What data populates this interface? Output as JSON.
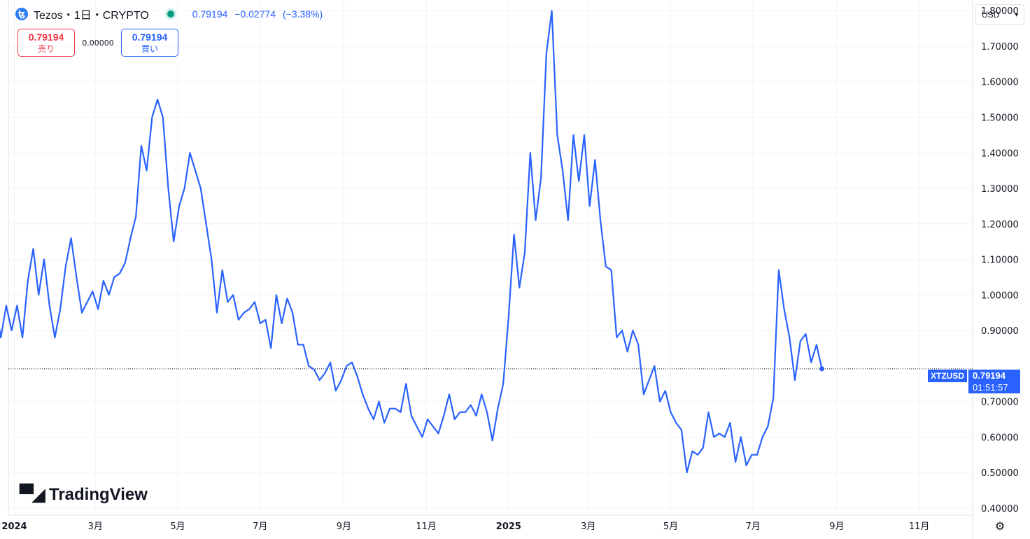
{
  "header": {
    "symbol_icon": "tezos-icon",
    "symbol_glyph": "ꜩ",
    "title": "Tezos・1日・CRYPTO",
    "price": "0.79194",
    "change": "−0.02774",
    "change_pct": "(−3.38%)"
  },
  "trade": {
    "sell_price": "0.79194",
    "sell_label": "売り",
    "spread": "0.00000",
    "buy_price": "0.79194",
    "buy_label": "買い"
  },
  "currency": {
    "value": "USD"
  },
  "price_label": {
    "symbol": "XTZUSD",
    "value": "0.79194",
    "countdown": "01:51:57"
  },
  "logo": {
    "text": "TradingView"
  },
  "colors": {
    "line": "#2962ff",
    "sell": "#f23645",
    "buy": "#2962ff",
    "live": "#089981"
  },
  "chart_data": {
    "type": "line",
    "series": [
      {
        "values": [
          0.97,
          0.88,
          0.97,
          0.9,
          0.97,
          0.88,
          1.04,
          1.13,
          1.0,
          1.1,
          0.97,
          0.88,
          0.96,
          1.08,
          1.16,
          1.05,
          0.95,
          0.98,
          1.01,
          0.96,
          1.04,
          1.0,
          1.05,
          1.06,
          1.09,
          1.16,
          1.22,
          1.42,
          1.35,
          1.5,
          1.55,
          1.5,
          1.3,
          1.15,
          1.25,
          1.3,
          1.4,
          1.35,
          1.3,
          1.2,
          1.1,
          0.95,
          1.07,
          0.98,
          1.0,
          0.93,
          0.95,
          0.96,
          0.98,
          0.92,
          0.93,
          0.85,
          1.0,
          0.92,
          0.99,
          0.95,
          0.86,
          0.86,
          0.8,
          0.79,
          0.76,
          0.78,
          0.81,
          0.73,
          0.76,
          0.8,
          0.81,
          0.77,
          0.72,
          0.68,
          0.65,
          0.7,
          0.64,
          0.68,
          0.68,
          0.67,
          0.75,
          0.66,
          0.63,
          0.6,
          0.65,
          0.63,
          0.61,
          0.66,
          0.72,
          0.65,
          0.67,
          0.67,
          0.69,
          0.66,
          0.72,
          0.67,
          0.59,
          0.68,
          0.75,
          0.94,
          1.17,
          1.02,
          1.12,
          1.4,
          1.21,
          1.33,
          1.68,
          1.8,
          1.45,
          1.35,
          1.21,
          1.45,
          1.32,
          1.45,
          1.25,
          1.38,
          1.21,
          1.08,
          1.07,
          0.88,
          0.9,
          0.84,
          0.9,
          0.86,
          0.72,
          0.76,
          0.8,
          0.7,
          0.73,
          0.67,
          0.64,
          0.62,
          0.5,
          0.56,
          0.55,
          0.57,
          0.67,
          0.6,
          0.61,
          0.6,
          0.64,
          0.53,
          0.6,
          0.52,
          0.55,
          0.55,
          0.6,
          0.63,
          0.71,
          1.07,
          0.96,
          0.88,
          0.76,
          0.87,
          0.89,
          0.81,
          0.86,
          0.79194
        ],
        "x_start": "2023-12-18",
        "x_step_days": 4
      }
    ],
    "xlabels": [
      {
        "date": "2024-01-01",
        "label": "2024",
        "bold": true
      },
      {
        "date": "2024-03-01",
        "label": "3月",
        "bold": false
      },
      {
        "date": "2024-05-01",
        "label": "5月",
        "bold": false
      },
      {
        "date": "2024-07-01",
        "label": "7月",
        "bold": false
      },
      {
        "date": "2024-09-01",
        "label": "9月",
        "bold": false
      },
      {
        "date": "2024-11-01",
        "label": "11月",
        "bold": false
      },
      {
        "date": "2025-01-01",
        "label": "2025",
        "bold": true
      },
      {
        "date": "2025-03-01",
        "label": "3月",
        "bold": false
      },
      {
        "date": "2025-05-01",
        "label": "5月",
        "bold": false
      },
      {
        "date": "2025-07-01",
        "label": "7月",
        "bold": false
      },
      {
        "date": "2025-09-01",
        "label": "9月",
        "bold": false
      },
      {
        "date": "2025-11-01",
        "label": "11月",
        "bold": false
      }
    ],
    "yticks": [
      0.4,
      0.5,
      0.6,
      0.7,
      0.9,
      1.0,
      1.1,
      1.2,
      1.3,
      1.4,
      1.5,
      1.6,
      1.7,
      1.8
    ],
    "ytick_labels": [
      "0.40000",
      "0.50000",
      "0.60000",
      "0.70000",
      "0.90000",
      "1.00000",
      "1.10000",
      "1.20000",
      "1.30000",
      "1.40000",
      "1.50000",
      "1.60000",
      "1.70000",
      "1.80000"
    ],
    "current_value": 0.79194,
    "ylim": [
      0.38,
      1.83
    ],
    "grid": true
  }
}
